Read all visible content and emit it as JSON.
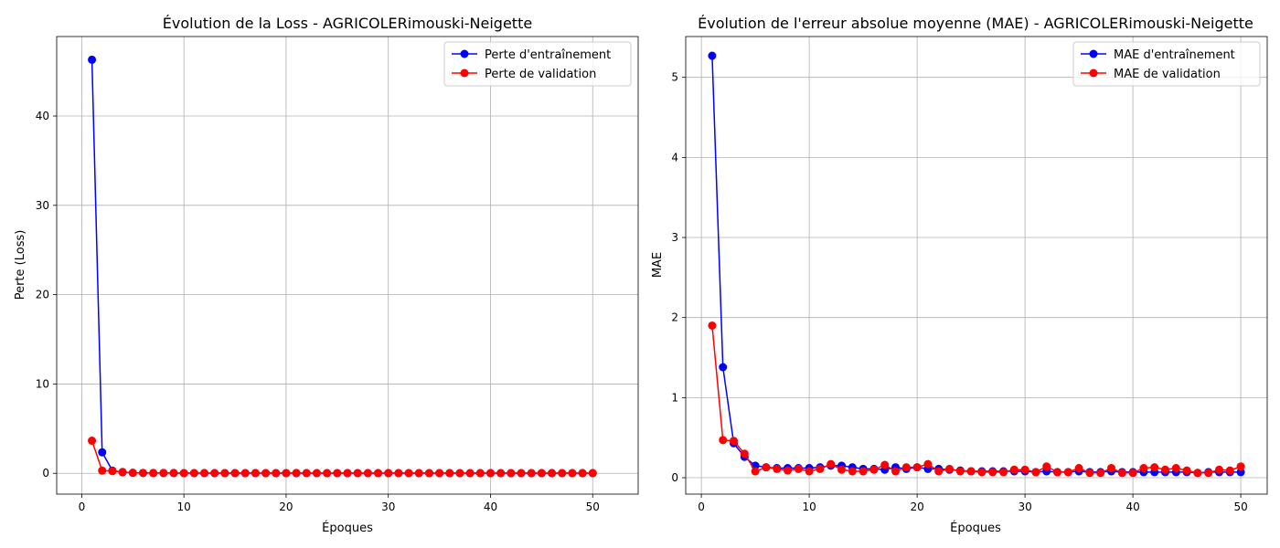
{
  "chart_data": [
    {
      "type": "line",
      "title": "Évolution de la Loss - AGRICOLERimouski-Neigette",
      "xlabel": "Époques",
      "ylabel": "Perte (Loss)",
      "xlim": [
        -2.45,
        54.45
      ],
      "ylim": [
        -2.33,
        48.9
      ],
      "xticks": [
        0,
        10,
        20,
        30,
        40,
        50
      ],
      "yticks": [
        0,
        10,
        20,
        30,
        40
      ],
      "grid": true,
      "legend_position": "top-right",
      "x": [
        1,
        2,
        3,
        4,
        5,
        6,
        7,
        8,
        9,
        10,
        11,
        12,
        13,
        14,
        15,
        16,
        17,
        18,
        19,
        20,
        21,
        22,
        23,
        24,
        25,
        26,
        27,
        28,
        29,
        30,
        31,
        32,
        33,
        34,
        35,
        36,
        37,
        38,
        39,
        40,
        41,
        42,
        43,
        44,
        45,
        46,
        47,
        48,
        49,
        50
      ],
      "series": [
        {
          "name": "Perte d'entraînement",
          "color": "#0000ff",
          "values": [
            46.3,
            2.35,
            0.3,
            0.12,
            0.06,
            0.04,
            0.03,
            0.03,
            0.03,
            0.02,
            0.02,
            0.02,
            0.02,
            0.02,
            0.02,
            0.02,
            0.02,
            0.02,
            0.02,
            0.02,
            0.02,
            0.02,
            0.02,
            0.02,
            0.02,
            0.02,
            0.02,
            0.02,
            0.02,
            0.02,
            0.02,
            0.02,
            0.02,
            0.02,
            0.02,
            0.02,
            0.02,
            0.02,
            0.02,
            0.02,
            0.02,
            0.02,
            0.02,
            0.02,
            0.02,
            0.02,
            0.02,
            0.02,
            0.02,
            0.02
          ]
        },
        {
          "name": "Perte de validation",
          "color": "#ff0000",
          "values": [
            3.65,
            0.3,
            0.25,
            0.15,
            0.05,
            0.04,
            0.03,
            0.03,
            0.03,
            0.02,
            0.02,
            0.03,
            0.02,
            0.02,
            0.02,
            0.02,
            0.03,
            0.02,
            0.02,
            0.02,
            0.03,
            0.02,
            0.02,
            0.02,
            0.02,
            0.02,
            0.02,
            0.02,
            0.02,
            0.02,
            0.02,
            0.02,
            0.02,
            0.02,
            0.02,
            0.02,
            0.02,
            0.02,
            0.02,
            0.02,
            0.02,
            0.02,
            0.02,
            0.02,
            0.02,
            0.02,
            0.02,
            0.02,
            0.02,
            0.02
          ]
        }
      ]
    },
    {
      "type": "line",
      "title": "Évolution de l'erreur absolue moyenne (MAE) - AGRICOLERimouski-Neigette",
      "xlabel": "Époques",
      "ylabel": "MAE",
      "xlim": [
        -1.45,
        52.45
      ],
      "ylim": [
        -0.205,
        5.51
      ],
      "xticks": [
        0,
        10,
        20,
        30,
        40,
        50
      ],
      "yticks": [
        0,
        1,
        2,
        3,
        4,
        5
      ],
      "grid": true,
      "legend_position": "top-right",
      "x": [
        1,
        2,
        3,
        4,
        5,
        6,
        7,
        8,
        9,
        10,
        11,
        12,
        13,
        14,
        15,
        16,
        17,
        18,
        19,
        20,
        21,
        22,
        23,
        24,
        25,
        26,
        27,
        28,
        29,
        30,
        31,
        32,
        33,
        34,
        35,
        36,
        37,
        38,
        39,
        40,
        41,
        42,
        43,
        44,
        45,
        46,
        47,
        48,
        49,
        50
      ],
      "series": [
        {
          "name": "MAE d'entraînement",
          "color": "#0000ff",
          "values": [
            5.27,
            1.38,
            0.43,
            0.26,
            0.15,
            0.13,
            0.12,
            0.12,
            0.12,
            0.12,
            0.13,
            0.15,
            0.15,
            0.13,
            0.11,
            0.11,
            0.1,
            0.13,
            0.11,
            0.13,
            0.11,
            0.11,
            0.1,
            0.09,
            0.08,
            0.08,
            0.08,
            0.08,
            0.08,
            0.08,
            0.07,
            0.08,
            0.07,
            0.07,
            0.08,
            0.07,
            0.07,
            0.08,
            0.07,
            0.07,
            0.07,
            0.07,
            0.07,
            0.07,
            0.07,
            0.06,
            0.07,
            0.07,
            0.07,
            0.07
          ]
        },
        {
          "name": "MAE de validation",
          "color": "#ff0000",
          "values": [
            1.9,
            0.47,
            0.46,
            0.3,
            0.08,
            0.13,
            0.11,
            0.09,
            0.11,
            0.08,
            0.11,
            0.17,
            0.1,
            0.08,
            0.08,
            0.1,
            0.16,
            0.08,
            0.13,
            0.13,
            0.17,
            0.08,
            0.11,
            0.08,
            0.08,
            0.07,
            0.07,
            0.07,
            0.1,
            0.1,
            0.07,
            0.14,
            0.07,
            0.07,
            0.12,
            0.06,
            0.06,
            0.12,
            0.06,
            0.06,
            0.12,
            0.13,
            0.1,
            0.12,
            0.09,
            0.06,
            0.06,
            0.1,
            0.09,
            0.14
          ]
        }
      ]
    }
  ]
}
